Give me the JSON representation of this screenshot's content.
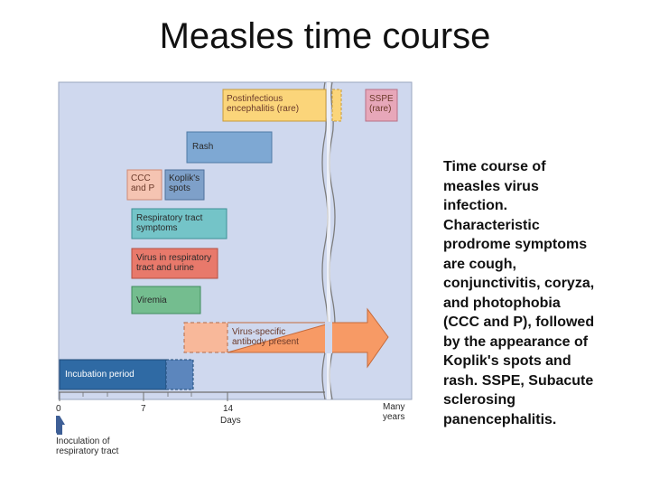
{
  "slide": {
    "title": "Measles time course"
  },
  "diagram": {
    "bars": {
      "postinfectious_encephalitis": "Postinfectious encephalitis (rare)",
      "sspe": "SSPE (rare)",
      "rash": "Rash",
      "ccc_and_p": "CCC and P",
      "kopliks_spots": "Koplik's spots",
      "respiratory_tract_symptoms": "Respiratory tract symptoms",
      "virus_in_respiratory_tract_and_urine": "Virus in respiratory tract and urine",
      "viremia": "Viremia",
      "virus_specific_antibody": "Virus-specific antibody present",
      "incubation_period": "Incubation period"
    },
    "axis": {
      "ticks": [
        "0",
        "7",
        "14"
      ],
      "days_label": "Days",
      "many_years": "Many years",
      "inoculation": "Inoculation of respiratory tract"
    },
    "colors": {
      "panel": "#cfd8ee",
      "encephalitis": "#fbd57a",
      "sspe": "#e7a7b9",
      "rash": "#7ea8d3",
      "ccc": "#f5c4b2",
      "koplik": "#7ea0c9",
      "respiratory": "#74c4c8",
      "virus_urine": "#e8796b",
      "viremia": "#74bd8f",
      "antibody": "#f79a65",
      "incubation": "#2f6aa4",
      "arrow": "#3e5f96"
    }
  },
  "caption": {
    "lines": [
      "Time course of",
      "measles virus",
      "infection.",
      "Characteristic",
      "prodrome symptoms",
      "are cough,",
      "conjunctivitis, coryza,",
      "and photophobia",
      "(CCC and P), followed",
      "by the appearance of",
      "Koplik's spots and",
      "rash. SSPE, Subacute",
      "sclerosing",
      "panencephalitis."
    ]
  }
}
